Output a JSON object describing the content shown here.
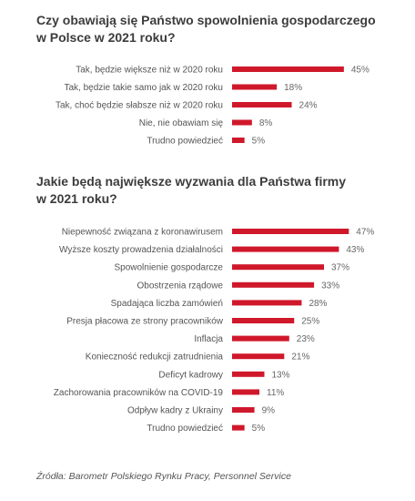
{
  "chart_data": [
    {
      "type": "bar",
      "orientation": "horizontal",
      "title": "Czy obawiają się Państwo spowolnienia gospodarczego\nw Polsce w 2021 roku?",
      "categories": [
        "Tak, będzie większe niż w 2020 roku",
        "Tak, będzie takie samo jak w 2020 roku",
        "Tak, choć będzie słabsze niż w 2020 roku",
        "Nie, nie obawiam się",
        "Trudno powiedzieć"
      ],
      "values": [
        45,
        18,
        24,
        8,
        5
      ],
      "value_labels": [
        "45%",
        "18%",
        "24%",
        "8%",
        "5%"
      ],
      "bar_color": "#d0182b"
    },
    {
      "type": "bar",
      "orientation": "horizontal",
      "title": "Jakie będą największe wyzwania dla Państwa firmy\nw 2021 roku?",
      "categories": [
        "Niepewność związana z koronawirusem",
        "Wyższe koszty prowadzenia działalności",
        "Spowolnienie gospodarcze",
        "Obostrzenia rządowe",
        "Spadająca liczba zamówień",
        "Presja płacowa ze strony pracowników",
        "Inflacja",
        "Konieczność redukcji zatrudnienia",
        "Deficyt kadrowy",
        "Zachorowania pracowników na COVID-19",
        "Odpływ kadry z Ukrainy",
        "Trudno powiedzieć"
      ],
      "values": [
        47,
        43,
        37,
        33,
        28,
        25,
        23,
        21,
        13,
        11,
        9,
        5
      ],
      "value_labels": [
        "47%",
        "43%",
        "37%",
        "33%",
        "28%",
        "25%",
        "23%",
        "21%",
        "13%",
        "11%",
        "9%",
        "5%"
      ],
      "bar_color": "#d0182b"
    }
  ],
  "source": "Źródła: Barometr Polskiego Rynku Pracy, Personnel Service"
}
